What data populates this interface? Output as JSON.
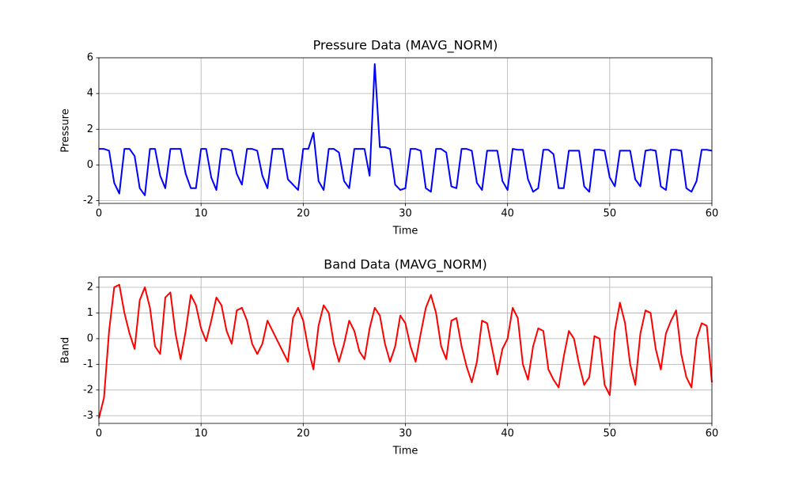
{
  "chart_data": [
    {
      "type": "line",
      "title": "Pressure Data (MAVG_NORM)",
      "x_label": "Time",
      "y_label": "Pressure",
      "color": "#0000ff",
      "grid": true,
      "xlim": [
        0,
        60
      ],
      "xticks": [
        0,
        10,
        20,
        30,
        40,
        50,
        60
      ],
      "ylim": [
        -2.15,
        6
      ],
      "yticks": [
        -2,
        0,
        2,
        4,
        6
      ],
      "x": [
        0,
        0.5,
        1,
        1.5,
        2,
        2.5,
        3,
        3.5,
        4,
        4.5,
        5,
        5.5,
        6,
        6.5,
        7,
        7.5,
        8,
        8.5,
        9,
        9.5,
        10,
        10.5,
        11,
        11.5,
        12,
        12.5,
        13,
        13.5,
        14,
        14.5,
        15,
        15.5,
        16,
        16.5,
        17,
        17.5,
        18,
        18.5,
        19,
        19.5,
        20,
        20.5,
        21,
        21.5,
        22,
        22.5,
        23,
        23.5,
        24,
        24.5,
        25,
        25.5,
        26,
        26.5,
        27,
        27.5,
        28,
        28.5,
        29,
        29.5,
        30,
        30.5,
        31,
        31.5,
        32,
        32.5,
        33,
        33.5,
        34,
        34.5,
        35,
        35.5,
        36,
        36.5,
        37,
        37.5,
        38,
        38.5,
        39,
        39.5,
        40,
        40.5,
        41,
        41.5,
        42,
        42.5,
        43,
        43.5,
        44,
        44.5,
        45,
        45.5,
        46,
        46.5,
        47,
        47.5,
        48,
        48.5,
        49,
        49.5,
        50,
        50.5,
        51,
        51.5,
        52,
        52.5,
        53,
        53.5,
        54,
        54.5,
        55,
        55.5,
        56,
        56.5,
        57,
        57.5,
        58,
        58.5,
        59,
        59.5,
        60
      ],
      "values": [
        0.9,
        0.9,
        0.8,
        -1.0,
        -1.6,
        0.9,
        0.9,
        0.5,
        -1.3,
        -1.7,
        0.9,
        0.9,
        -0.6,
        -1.3,
        0.9,
        0.9,
        0.9,
        -0.5,
        -1.3,
        -1.3,
        0.9,
        0.9,
        -0.7,
        -1.4,
        0.9,
        0.9,
        0.8,
        -0.5,
        -1.1,
        0.9,
        0.9,
        0.8,
        -0.6,
        -1.3,
        0.9,
        0.9,
        0.9,
        -0.8,
        -1.1,
        -1.4,
        0.9,
        0.9,
        1.8,
        -0.9,
        -1.4,
        0.9,
        0.9,
        0.7,
        -0.9,
        -1.3,
        0.9,
        0.9,
        0.9,
        -0.6,
        5.65,
        1.0,
        1.0,
        0.9,
        -1.1,
        -1.4,
        -1.3,
        0.9,
        0.9,
        0.8,
        -1.3,
        -1.5,
        0.9,
        0.9,
        0.7,
        -1.2,
        -1.3,
        0.9,
        0.9,
        0.8,
        -1.0,
        -1.4,
        0.8,
        0.8,
        0.8,
        -0.9,
        -1.4,
        0.9,
        0.85,
        0.85,
        -0.8,
        -1.5,
        -1.3,
        0.85,
        0.85,
        0.6,
        -1.3,
        -1.3,
        0.8,
        0.8,
        0.8,
        -1.2,
        -1.5,
        0.85,
        0.85,
        0.8,
        -0.7,
        -1.2,
        0.8,
        0.8,
        0.8,
        -0.8,
        -1.2,
        0.8,
        0.85,
        0.8,
        -1.2,
        -1.4,
        0.85,
        0.85,
        0.8,
        -1.3,
        -1.5,
        -0.9,
        0.85,
        0.85,
        0.8
      ]
    },
    {
      "type": "line",
      "title": "Band Data (MAVG_NORM)",
      "x_label": "Time",
      "y_label": "Band",
      "color": "#ff0000",
      "grid": true,
      "xlim": [
        0,
        60
      ],
      "xticks": [
        0,
        10,
        20,
        30,
        40,
        50,
        60
      ],
      "ylim": [
        -3.3,
        2.4
      ],
      "yticks": [
        -3,
        -2,
        -1,
        0,
        1,
        2
      ],
      "x": [
        0,
        0.5,
        1,
        1.5,
        2,
        2.5,
        3,
        3.5,
        4,
        4.5,
        5,
        5.5,
        6,
        6.5,
        7,
        7.5,
        8,
        8.5,
        9,
        9.5,
        10,
        10.5,
        11,
        11.5,
        12,
        12.5,
        13,
        13.5,
        14,
        14.5,
        15,
        15.5,
        16,
        16.5,
        17,
        17.5,
        18,
        18.5,
        19,
        19.5,
        20,
        20.5,
        21,
        21.5,
        22,
        22.5,
        23,
        23.5,
        24,
        24.5,
        25,
        25.5,
        26,
        26.5,
        27,
        27.5,
        28,
        28.5,
        29,
        29.5,
        30,
        30.5,
        31,
        31.5,
        32,
        32.5,
        33,
        33.5,
        34,
        34.5,
        35,
        35.5,
        36,
        36.5,
        37,
        37.5,
        38,
        38.5,
        39,
        39.5,
        40,
        40.5,
        41,
        41.5,
        42,
        42.5,
        43,
        43.5,
        44,
        44.5,
        45,
        45.5,
        46,
        46.5,
        47,
        47.5,
        48,
        48.5,
        49,
        49.5,
        50,
        50.5,
        51,
        51.5,
        52,
        52.5,
        53,
        53.5,
        54,
        54.5,
        55,
        55.5,
        56,
        56.5,
        57,
        57.5,
        58,
        58.5,
        59,
        59.5,
        60
      ],
      "values": [
        -3.1,
        -2.3,
        0.3,
        2.0,
        2.1,
        1.0,
        0.2,
        -0.4,
        1.5,
        2.0,
        1.2,
        -0.3,
        -0.6,
        1.6,
        1.8,
        0.2,
        -0.8,
        0.3,
        1.7,
        1.3,
        0.4,
        -0.1,
        0.7,
        1.6,
        1.3,
        0.3,
        -0.2,
        1.1,
        1.2,
        0.7,
        -0.2,
        -0.6,
        -0.2,
        0.7,
        0.3,
        -0.1,
        -0.5,
        -0.9,
        0.8,
        1.2,
        0.7,
        -0.4,
        -1.2,
        0.5,
        1.3,
        1.0,
        -0.2,
        -0.9,
        -0.2,
        0.7,
        0.3,
        -0.5,
        -0.8,
        0.4,
        1.2,
        0.9,
        -0.2,
        -0.9,
        -0.3,
        0.9,
        0.6,
        -0.3,
        -0.9,
        0.2,
        1.2,
        1.7,
        1.0,
        -0.3,
        -0.8,
        0.7,
        0.8,
        -0.3,
        -1.1,
        -1.7,
        -0.9,
        0.7,
        0.6,
        -0.4,
        -1.4,
        -0.4,
        0.0,
        1.2,
        0.8,
        -1.0,
        -1.6,
        -0.3,
        0.4,
        0.3,
        -1.2,
        -1.6,
        -1.9,
        -0.7,
        0.3,
        0.0,
        -1.0,
        -1.8,
        -1.5,
        0.1,
        0.0,
        -1.8,
        -2.2,
        0.3,
        1.4,
        0.6,
        -1.0,
        -1.8,
        0.2,
        1.1,
        1.0,
        -0.4,
        -1.2,
        0.2,
        0.7,
        1.1,
        -0.6,
        -1.5,
        -1.9,
        0.0,
        0.6,
        0.5,
        -1.7
      ]
    }
  ]
}
